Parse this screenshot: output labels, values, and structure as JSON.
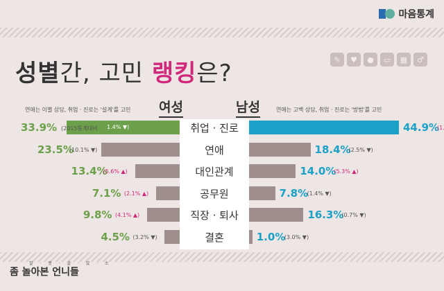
{
  "brand": {
    "name": "마음통계"
  },
  "title": {
    "part1": "성별",
    "part2": "간, 고민 ",
    "part3": "랭킹",
    "part4": "은?"
  },
  "captions": {
    "female": "연애는 이별 상담, 취업 · 진로는 '설계'를 고민",
    "male": "연애는 고백 상담, 취업 · 진로는 '방법'를 고민"
  },
  "headers": {
    "female": "여성",
    "male": "남성"
  },
  "first_row_note": "(2015통계대비",
  "footer": {
    "tagline": "잘 · 못 · 살 · 았 · 소",
    "name_a": "좀 놀아본 언니들"
  },
  "icons": [
    "pen-icon",
    "heart-icon",
    "person-icon",
    "book-icon",
    "gift-icon",
    "gender-icon"
  ],
  "chart_data": {
    "type": "bar",
    "orientation": "horizontal-diverging",
    "categories": [
      "취업 · 진로",
      "연애",
      "대인관계",
      "공무원",
      "직장 · 퇴사",
      "결혼"
    ],
    "series": [
      {
        "name": "여성",
        "values": [
          33.9,
          23.5,
          13.4,
          7.1,
          9.8,
          4.5
        ],
        "value_labels": [
          "33.9%",
          "23.5%",
          "13.4%",
          "7.1%",
          "9.8%",
          "4.5%"
        ],
        "change_labels": [
          "1.4%",
          "(10.1%",
          "(5.6%",
          "(2.1%",
          "(4.1%",
          "(3.2%"
        ],
        "change_dirs": [
          "down",
          "down",
          "up",
          "up",
          "up",
          "down"
        ]
      },
      {
        "name": "남성",
        "values": [
          44.9,
          18.4,
          14.0,
          7.8,
          16.3,
          1.0
        ],
        "value_labels": [
          "44.9%",
          "18.4%",
          "14.0%",
          "7.8%",
          "16.3%",
          "1.0%"
        ],
        "change_labels": [
          "(1.3%",
          "(2.5%",
          "(5.3%",
          "(1.4%",
          "(0.7%",
          "(3.0%"
        ],
        "change_dirs": [
          "up",
          "down",
          "up",
          "down",
          "down",
          "down"
        ]
      }
    ],
    "xlim": [
      0,
      45
    ],
    "colors": {
      "female_top": "#6da04a",
      "male_top": "#1ba0c7",
      "other": "#9e8f8c",
      "up": "#d0287a"
    }
  }
}
